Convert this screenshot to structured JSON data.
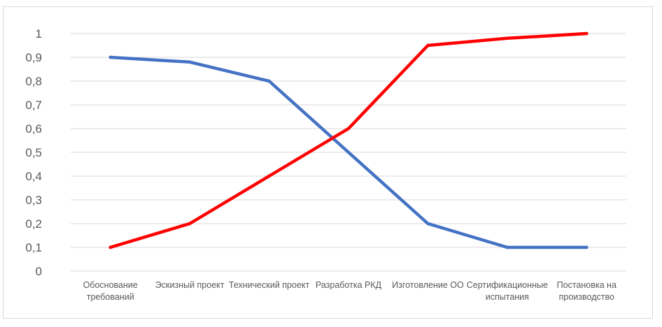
{
  "chart_data": {
    "type": "line",
    "categories": [
      [
        "Обоснование",
        "требований"
      ],
      [
        "Эскизный проект"
      ],
      [
        "Технический проект"
      ],
      [
        "Разработка РКД"
      ],
      [
        "Изготовление ОО"
      ],
      [
        "Сертификационные",
        "испытания"
      ],
      [
        "Постановка на",
        "производство"
      ]
    ],
    "y_ticks": [
      "0",
      "0,1",
      "0,2",
      "0,3",
      "0,4",
      "0,5",
      "0,6",
      "0,7",
      "0,8",
      "0,9",
      "1"
    ],
    "ylim": [
      0,
      1
    ],
    "grid": true,
    "series": [
      {
        "color": "#4472c4",
        "values": [
          0.9,
          0.88,
          0.8,
          0.5,
          0.2,
          0.1,
          0.1
        ]
      },
      {
        "color": "#ff0000",
        "values": [
          0.1,
          0.2,
          0.4,
          0.6,
          0.95,
          0.98,
          1.0
        ]
      }
    ]
  }
}
